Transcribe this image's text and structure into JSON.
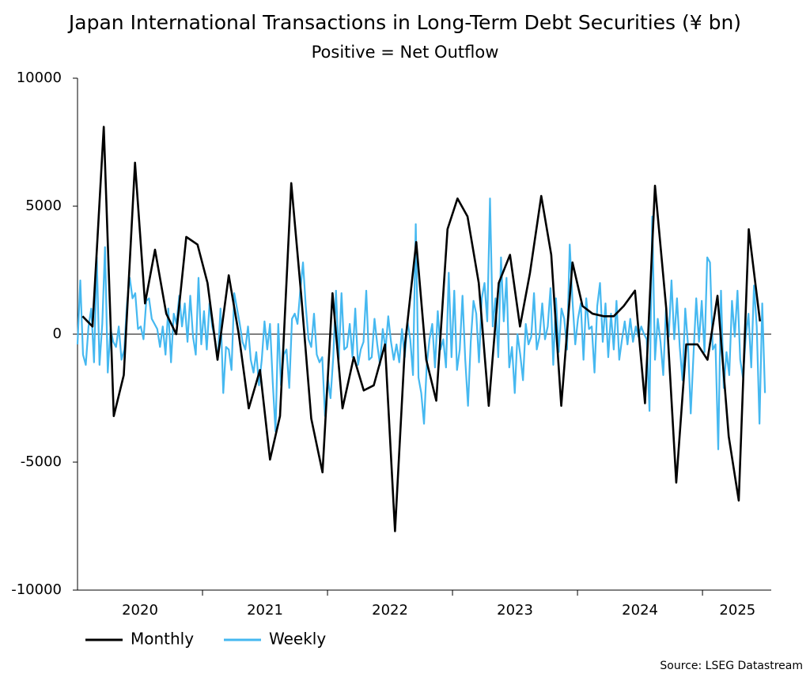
{
  "chart_data": {
    "type": "line",
    "title": "Japan International Transactions in Long-Term Debt Securities (¥ bn)",
    "subtitle": "Positive = Net Outflow",
    "source": "Source: LSEG Datastream",
    "xlim": [
      2020,
      2025.55
    ],
    "xticks": [
      {
        "value": 2020.5,
        "label": "2020"
      },
      {
        "value": 2021.5,
        "label": "2021"
      },
      {
        "value": 2022.5,
        "label": "2022"
      },
      {
        "value": 2023.5,
        "label": "2023"
      },
      {
        "value": 2024.5,
        "label": "2024"
      },
      {
        "value": 2025.28,
        "label": "2025"
      }
    ],
    "ylim": [
      -10000,
      10000
    ],
    "yticks": [
      -10000,
      -5000,
      0,
      5000,
      10000
    ],
    "legend": "bottom-left",
    "series": [
      {
        "name": "Monthly",
        "color": "#000000",
        "x": [
          2020.04,
          2020.12,
          2020.21,
          2020.29,
          2020.37,
          2020.46,
          2020.54,
          2020.62,
          2020.71,
          2020.79,
          2020.87,
          2020.96,
          2021.04,
          2021.12,
          2021.21,
          2021.29,
          2021.37,
          2021.46,
          2021.54,
          2021.62,
          2021.71,
          2021.79,
          2021.87,
          2021.96,
          2022.04,
          2022.12,
          2022.21,
          2022.29,
          2022.37,
          2022.46,
          2022.54,
          2022.62,
          2022.71,
          2022.79,
          2022.87,
          2022.96,
          2023.04,
          2023.12,
          2023.21,
          2023.29,
          2023.37,
          2023.46,
          2023.54,
          2023.62,
          2023.71,
          2023.79,
          2023.87,
          2023.96,
          2024.04,
          2024.12,
          2024.21,
          2024.29,
          2024.37,
          2024.46,
          2024.54,
          2024.62,
          2024.71,
          2024.79,
          2024.87,
          2024.96,
          2025.04,
          2025.12,
          2025.21,
          2025.29,
          2025.37,
          2025.46
        ],
        "values": [
          700,
          300,
          8100,
          -3200,
          -1600,
          6700,
          1200,
          3300,
          800,
          0,
          3800,
          3500,
          2000,
          -1000,
          2300,
          0,
          -2900,
          -1400,
          -4900,
          -3200,
          5900,
          1500,
          -3300,
          -5400,
          1600,
          -2900,
          -900,
          -2200,
          -2000,
          -400,
          -7700,
          -400,
          3600,
          -1000,
          -2600,
          4100,
          5300,
          4600,
          2000,
          -2800,
          2000,
          3100,
          300,
          2400,
          5400,
          3100,
          -2800,
          2800,
          1100,
          800,
          700,
          700,
          1100,
          1700,
          -2700,
          5800,
          1000,
          -5800,
          -400,
          -400,
          -1000,
          1500,
          -4000,
          -6500,
          4100,
          500
        ]
      },
      {
        "name": "Weekly",
        "color": "#45b8f0",
        "x": [
          2020.0,
          2020.022,
          2020.044,
          2020.066,
          2020.088,
          2020.11,
          2020.132,
          2020.154,
          2020.176,
          2020.198,
          2020.22,
          2020.242,
          2020.264,
          2020.286,
          2020.308,
          2020.33,
          2020.352,
          2020.374,
          2020.396,
          2020.418,
          2020.44,
          2020.462,
          2020.484,
          2020.506,
          2020.528,
          2020.55,
          2020.572,
          2020.594,
          2020.616,
          2020.638,
          2020.66,
          2020.682,
          2020.704,
          2020.726,
          2020.748,
          2020.77,
          2020.792,
          2020.814,
          2020.836,
          2020.858,
          2020.88,
          2020.902,
          2020.924,
          2020.946,
          2020.968,
          2020.99,
          2021.012,
          2021.034,
          2021.056,
          2021.078,
          2021.1,
          2021.122,
          2021.144,
          2021.166,
          2021.188,
          2021.21,
          2021.232,
          2021.254,
          2021.276,
          2021.298,
          2021.32,
          2021.342,
          2021.364,
          2021.386,
          2021.408,
          2021.43,
          2021.452,
          2021.474,
          2021.496,
          2021.518,
          2021.54,
          2021.562,
          2021.584,
          2021.606,
          2021.628,
          2021.65,
          2021.672,
          2021.694,
          2021.716,
          2021.738,
          2021.76,
          2021.782,
          2021.804,
          2021.826,
          2021.848,
          2021.87,
          2021.892,
          2021.914,
          2021.936,
          2021.958,
          2021.98,
          2022.002,
          2022.024,
          2022.046,
          2022.068,
          2022.09,
          2022.112,
          2022.134,
          2022.156,
          2022.178,
          2022.2,
          2022.222,
          2022.244,
          2022.266,
          2022.288,
          2022.31,
          2022.332,
          2022.354,
          2022.376,
          2022.398,
          2022.42,
          2022.442,
          2022.464,
          2022.486,
          2022.508,
          2022.53,
          2022.552,
          2022.574,
          2022.596,
          2022.618,
          2022.64,
          2022.662,
          2022.684,
          2022.706,
          2022.728,
          2022.75,
          2022.772,
          2022.794,
          2022.816,
          2022.838,
          2022.86,
          2022.882,
          2022.904,
          2022.926,
          2022.948,
          2022.97,
          2022.992,
          2023.014,
          2023.036,
          2023.058,
          2023.08,
          2023.102,
          2023.124,
          2023.146,
          2023.168,
          2023.19,
          2023.212,
          2023.234,
          2023.256,
          2023.278,
          2023.3,
          2023.322,
          2023.344,
          2023.366,
          2023.388,
          2023.41,
          2023.432,
          2023.454,
          2023.476,
          2023.498,
          2023.52,
          2023.542,
          2023.564,
          2023.586,
          2023.608,
          2023.63,
          2023.652,
          2023.674,
          2023.696,
          2023.718,
          2023.74,
          2023.762,
          2023.784,
          2023.806,
          2023.828,
          2023.85,
          2023.872,
          2023.894,
          2023.916,
          2023.938,
          2023.96,
          2023.982,
          2024.004,
          2024.026,
          2024.048,
          2024.07,
          2024.092,
          2024.114,
          2024.136,
          2024.158,
          2024.18,
          2024.202,
          2024.224,
          2024.246,
          2024.268,
          2024.29,
          2024.312,
          2024.334,
          2024.356,
          2024.378,
          2024.4,
          2024.422,
          2024.444,
          2024.466,
          2024.488,
          2024.51,
          2024.532,
          2024.554,
          2024.576,
          2024.598,
          2024.62,
          2024.642,
          2024.664,
          2024.686,
          2024.708,
          2024.73,
          2024.752,
          2024.774,
          2024.796,
          2024.818,
          2024.84,
          2024.862,
          2024.884,
          2024.906,
          2024.928,
          2024.95,
          2024.972,
          2024.994,
          2025.016,
          2025.038,
          2025.06,
          2025.082,
          2025.104,
          2025.126,
          2025.148,
          2025.17,
          2025.192,
          2025.214,
          2025.236,
          2025.258,
          2025.28,
          2025.302,
          2025.324,
          2025.346,
          2025.368,
          2025.39,
          2025.412,
          2025.434,
          2025.456,
          2025.478,
          2025.5
        ],
        "values": [
          -400,
          2100,
          -800,
          -1200,
          300,
          1000,
          -1100,
          3000,
          -1200,
          400,
          3400,
          -1500,
          200,
          -300,
          -500,
          300,
          -1000,
          -600,
          1200,
          2200,
          1400,
          1600,
          200,
          300,
          -200,
          1300,
          1400,
          600,
          400,
          200,
          -500,
          300,
          -800,
          1000,
          -1100,
          800,
          400,
          1500,
          300,
          1200,
          -300,
          1500,
          -100,
          -800,
          2200,
          -400,
          900,
          -600,
          1200,
          300,
          -200,
          -1000,
          1000,
          -2300,
          -500,
          -600,
          -1400,
          1600,
          1000,
          400,
          -300,
          -600,
          300,
          -1000,
          -1500,
          -700,
          -2000,
          -1000,
          500,
          -600,
          400,
          -1900,
          -3800,
          400,
          -2000,
          -800,
          -600,
          -2100,
          600,
          800,
          400,
          1700,
          2800,
          1100,
          -200,
          -500,
          800,
          -800,
          -1100,
          -900,
          -3200,
          -1700,
          -2500,
          -900,
          1700,
          -1000,
          1600,
          -600,
          -500,
          400,
          -900,
          1000,
          -1200,
          -600,
          -300,
          1700,
          -1000,
          -900,
          600,
          -400,
          -1200,
          200,
          -600,
          700,
          -300,
          -1000,
          -400,
          -1100,
          200,
          -900,
          500,
          -200,
          -1600,
          4300,
          -1700,
          -2300,
          -3500,
          -1200,
          -200,
          400,
          -1300,
          900,
          -600,
          -200,
          -1300,
          2400,
          -900,
          1700,
          -1400,
          -600,
          1500,
          -1000,
          -2800,
          -300,
          1300,
          800,
          -1100,
          1400,
          2000,
          500,
          5300,
          300,
          1400,
          -900,
          3000,
          500,
          2200,
          -1300,
          -500,
          -2300,
          0,
          -800,
          -1800,
          400,
          -400,
          -100,
          1600,
          -600,
          -100,
          1200,
          -200,
          300,
          1800,
          -1200,
          1400,
          -700,
          1000,
          600,
          -600,
          3500,
          1300,
          -400,
          600,
          1200,
          -1000,
          1400,
          200,
          300,
          -1500,
          1100,
          2000,
          -300,
          1200,
          -900,
          800,
          -600,
          1300,
          -1000,
          -200,
          500,
          -400,
          600,
          -300,
          300,
          -100,
          300,
          0,
          -200,
          -3000,
          4600,
          -1000,
          600,
          -300,
          -1600,
          1000,
          -100,
          2100,
          -200,
          1400,
          -500,
          -1800,
          1000,
          -400,
          -3100,
          -800,
          1400,
          -300,
          1300,
          -700,
          3000,
          2800,
          -600,
          -400,
          -4500,
          1700,
          -2100,
          -700,
          -1600,
          1300,
          -100,
          1700,
          -1000,
          -1700,
          -100,
          800,
          -1300,
          1900,
          300,
          -3500,
          1200,
          -2300
        ]
      }
    ]
  }
}
